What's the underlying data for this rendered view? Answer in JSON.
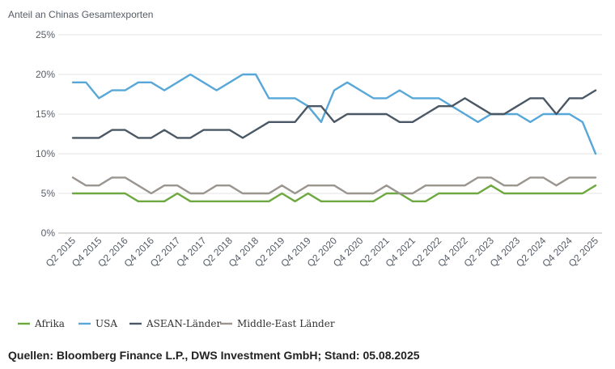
{
  "chart_data": {
    "type": "line",
    "title": "",
    "ylabel": "Anteil an Chinas Gesamtexporten",
    "xlabel": "",
    "ylim": [
      0,
      25
    ],
    "yticks": [
      "0%",
      "5%",
      "10%",
      "15%",
      "20%",
      "25%"
    ],
    "grid": "horizontal",
    "legend_position": "bottom-left",
    "x": [
      "Q2 2015",
      "Q3 2015",
      "Q4 2015",
      "Q1 2016",
      "Q2 2016",
      "Q3 2016",
      "Q4 2016",
      "Q1 2017",
      "Q2 2017",
      "Q3 2017",
      "Q4 2017",
      "Q1 2018",
      "Q2 2018",
      "Q3 2018",
      "Q4 2018",
      "Q1 2019",
      "Q2 2019",
      "Q3 2019",
      "Q4 2019",
      "Q1 2020",
      "Q2 2020",
      "Q3 2020",
      "Q4 2020",
      "Q1 2021",
      "Q2 2021",
      "Q3 2021",
      "Q4 2021",
      "Q1 2022",
      "Q2 2022",
      "Q3 2022",
      "Q4 2022",
      "Q1 2023",
      "Q2 2023",
      "Q3 2023",
      "Q4 2023",
      "Q1 2024",
      "Q2 2024",
      "Q3 2024",
      "Q4 2024",
      "Q1 2025",
      "Q2 2025"
    ],
    "xtick_labels": [
      "Q2 2015",
      "",
      "Q4 2015",
      "",
      "Q2 2016",
      "",
      "Q4 2016",
      "",
      "Q2 2017",
      "",
      "Q4 2017",
      "",
      "Q2 2018",
      "",
      "Q4 2018",
      "",
      "Q2 2019",
      "",
      "Q4 2019",
      "",
      "Q2 2020",
      "",
      "Q4 2020",
      "",
      "Q2 2021",
      "",
      "Q4 2021",
      "",
      "Q2 2022",
      "",
      "Q4 2022",
      "",
      "Q2 2023",
      "",
      "Q4 2023",
      "",
      "Q2 2024",
      "",
      "Q4 2024",
      "",
      "Q2 2025"
    ],
    "series": [
      {
        "name": "Afrika",
        "color": "#6ea840",
        "values": [
          5,
          5,
          5,
          5,
          5,
          4,
          4,
          4,
          5,
          4,
          4,
          4,
          4,
          4,
          4,
          4,
          5,
          4,
          5,
          4,
          4,
          4,
          4,
          4,
          5,
          5,
          4,
          4,
          5,
          5,
          5,
          5,
          6,
          5,
          5,
          5,
          5,
          5,
          5,
          5,
          6
        ]
      },
      {
        "name": "USA",
        "color": "#57a7d8",
        "values": [
          19,
          19,
          17,
          18,
          18,
          19,
          19,
          18,
          19,
          20,
          19,
          18,
          19,
          20,
          20,
          17,
          17,
          17,
          16,
          14,
          18,
          19,
          18,
          17,
          17,
          18,
          17,
          17,
          17,
          16,
          15,
          14,
          15,
          15,
          15,
          14,
          15,
          15,
          15,
          14,
          10
        ]
      },
      {
        "name": "ASEAN-Länder",
        "color": "#4a5866",
        "values": [
          12,
          12,
          12,
          13,
          13,
          12,
          12,
          13,
          12,
          12,
          13,
          13,
          13,
          12,
          13,
          14,
          14,
          14,
          16,
          16,
          14,
          15,
          15,
          15,
          15,
          14,
          14,
          15,
          16,
          16,
          17,
          16,
          15,
          15,
          16,
          17,
          17,
          15,
          17,
          17,
          18
        ]
      },
      {
        "name": "Middle-East Länder",
        "color": "#9b9590",
        "values": [
          7,
          6,
          6,
          7,
          7,
          6,
          5,
          6,
          6,
          5,
          5,
          6,
          6,
          5,
          5,
          5,
          6,
          5,
          6,
          6,
          6,
          5,
          5,
          5,
          6,
          5,
          5,
          6,
          6,
          6,
          6,
          7,
          7,
          6,
          6,
          7,
          7,
          6,
          7,
          7,
          7
        ]
      }
    ]
  },
  "source": "Quellen: Bloomberg Finance L.P., DWS Investment GmbH; Stand: 05.08.2025"
}
